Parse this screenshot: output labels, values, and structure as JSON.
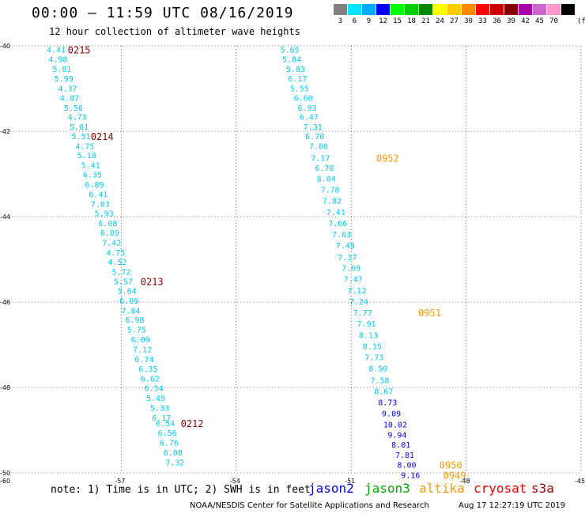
{
  "header": {
    "title": "00:00 – 11:59 UTC 08/16/2019",
    "subtitle": "12 hour collection of altimeter wave heights"
  },
  "legend": {
    "unit": "(ft)",
    "bins": [
      {
        "label": "3",
        "color": "#808080"
      },
      {
        "label": "6",
        "color": "#00e5ff"
      },
      {
        "label": "9",
        "color": "#00aaff"
      },
      {
        "label": "12",
        "color": "#0000ff"
      },
      {
        "label": "15",
        "color": "#00ff00"
      },
      {
        "label": "18",
        "color": "#00cc00"
      },
      {
        "label": "21",
        "color": "#008800"
      },
      {
        "label": "24",
        "color": "#ffff00"
      },
      {
        "label": "27",
        "color": "#ffcc00"
      },
      {
        "label": "30",
        "color": "#ff8800"
      },
      {
        "label": "33",
        "color": "#ff0000"
      },
      {
        "label": "36",
        "color": "#cc0000"
      },
      {
        "label": "39",
        "color": "#880000"
      },
      {
        "label": "42",
        "color": "#aa00aa"
      },
      {
        "label": "45",
        "color": "#cc66cc"
      },
      {
        "label": "70",
        "color": "#ff99cc"
      },
      {
        "label": "",
        "color": "#000000"
      }
    ]
  },
  "chart_data": {
    "type": "scatter",
    "xlim": [
      -60,
      -45
    ],
    "ylim": [
      -50,
      -40
    ],
    "x_ticks": [
      "-57",
      "-54",
      "-51",
      "-48",
      "-45"
    ],
    "y_ticks": [
      "-40",
      "-42",
      "-44",
      "-46",
      "-48",
      "-50"
    ],
    "corner_tick": "-60",
    "grid": true,
    "tracks": [
      {
        "color": "#00ccee",
        "values": [
          {
            "lon": -58.7,
            "lat": -40.08,
            "v": "4.41"
          },
          {
            "lon": -58.65,
            "lat": -40.31,
            "v": "4.98"
          },
          {
            "lon": -58.55,
            "lat": -40.54,
            "v": "5.81"
          },
          {
            "lon": -58.5,
            "lat": -40.76,
            "v": "5.99"
          },
          {
            "lon": -58.4,
            "lat": -40.99,
            "v": "4.37"
          },
          {
            "lon": -58.35,
            "lat": -41.21,
            "v": "4.87"
          },
          {
            "lon": -58.25,
            "lat": -41.44,
            "v": "5.56"
          },
          {
            "lon": -58.15,
            "lat": -41.66,
            "v": "4.73"
          },
          {
            "lon": -58.1,
            "lat": -41.89,
            "v": "5.01"
          },
          {
            "lon": -58.05,
            "lat": -42.11,
            "v": "5.51"
          },
          {
            "lon": -57.95,
            "lat": -42.34,
            "v": "4.75"
          },
          {
            "lon": -57.9,
            "lat": -42.56,
            "v": "5.18"
          },
          {
            "lon": -57.8,
            "lat": -42.79,
            "v": "5.41"
          },
          {
            "lon": -57.75,
            "lat": -43.01,
            "v": "6.35"
          },
          {
            "lon": -57.7,
            "lat": -43.24,
            "v": "6.89"
          },
          {
            "lon": -57.6,
            "lat": -43.47,
            "v": "6.41"
          },
          {
            "lon": -57.55,
            "lat": -43.69,
            "v": "7.03"
          },
          {
            "lon": -57.45,
            "lat": -43.92,
            "v": "5.93"
          },
          {
            "lon": -57.35,
            "lat": -44.15,
            "v": "6.08"
          },
          {
            "lon": -57.3,
            "lat": -44.37,
            "v": "6.89"
          },
          {
            "lon": -57.25,
            "lat": -44.6,
            "v": "7.42"
          },
          {
            "lon": -57.15,
            "lat": -44.83,
            "v": "4.75"
          },
          {
            "lon": -57.1,
            "lat": -45.06,
            "v": "4.52"
          },
          {
            "lon": -57.0,
            "lat": -45.29,
            "v": "5.72"
          },
          {
            "lon": -56.95,
            "lat": -45.51,
            "v": "5.57"
          },
          {
            "lon": -56.85,
            "lat": -45.73,
            "v": "5.64"
          },
          {
            "lon": -56.8,
            "lat": -45.96,
            "v": "6.09"
          },
          {
            "lon": -56.75,
            "lat": -46.19,
            "v": "7.84"
          },
          {
            "lon": -56.65,
            "lat": -46.41,
            "v": "6.98"
          },
          {
            "lon": -56.6,
            "lat": -46.64,
            "v": "5.75"
          },
          {
            "lon": -56.5,
            "lat": -46.87,
            "v": "6.09"
          },
          {
            "lon": -56.45,
            "lat": -47.1,
            "v": "7.12"
          },
          {
            "lon": -56.4,
            "lat": -47.33,
            "v": "6.74"
          },
          {
            "lon": -56.3,
            "lat": -47.56,
            "v": "6.35"
          },
          {
            "lon": -56.25,
            "lat": -47.79,
            "v": "6.62"
          },
          {
            "lon": -56.15,
            "lat": -48.01,
            "v": "6.54"
          },
          {
            "lon": -56.1,
            "lat": -48.24,
            "v": "5.49"
          },
          {
            "lon": -56.0,
            "lat": -48.47,
            "v": "5.33"
          },
          {
            "lon": -55.95,
            "lat": -48.7,
            "v": "6.17"
          },
          {
            "lon": -55.85,
            "lat": -48.83,
            "v": "6.54"
          },
          {
            "lon": -55.8,
            "lat": -49.06,
            "v": "6.56"
          },
          {
            "lon": -55.75,
            "lat": -49.29,
            "v": "6.76"
          },
          {
            "lon": -55.65,
            "lat": -49.52,
            "v": "6.08"
          },
          {
            "lon": -55.6,
            "lat": -49.75,
            "v": "7.32"
          }
        ],
        "passes": [
          {
            "lon": -58.1,
            "lat": -40.08,
            "t": "0215"
          },
          {
            "lon": -57.5,
            "lat": -42.11,
            "t": "0214"
          },
          {
            "lon": -56.2,
            "lat": -45.51,
            "t": "0213"
          },
          {
            "lon": -55.15,
            "lat": -48.83,
            "t": "0212"
          }
        ]
      },
      {
        "color": "#00ccee",
        "values": [
          {
            "lon": -52.6,
            "lat": -40.08,
            "v": "5.65"
          },
          {
            "lon": -52.55,
            "lat": -40.31,
            "v": "5.84"
          },
          {
            "lon": -52.45,
            "lat": -40.54,
            "v": "5.83"
          },
          {
            "lon": -52.4,
            "lat": -40.76,
            "v": "6.17"
          },
          {
            "lon": -52.35,
            "lat": -40.99,
            "v": "5.55"
          },
          {
            "lon": -52.25,
            "lat": -41.21,
            "v": "6.60"
          },
          {
            "lon": -52.15,
            "lat": -41.44,
            "v": "6.93"
          },
          {
            "lon": -52.1,
            "lat": -41.66,
            "v": "6.47"
          },
          {
            "lon": -52.0,
            "lat": -41.89,
            "v": "7.31"
          },
          {
            "lon": -51.95,
            "lat": -42.11,
            "v": "6.70"
          },
          {
            "lon": -51.85,
            "lat": -42.34,
            "v": "7.00"
          },
          {
            "lon": -51.8,
            "lat": -42.62,
            "v": "7.17"
          },
          {
            "lon": -51.7,
            "lat": -42.85,
            "v": "6.70"
          },
          {
            "lon": -51.65,
            "lat": -43.1,
            "v": "8.04"
          },
          {
            "lon": -51.55,
            "lat": -43.36,
            "v": "7.78"
          },
          {
            "lon": -51.5,
            "lat": -43.62,
            "v": "7.82"
          },
          {
            "lon": -51.4,
            "lat": -43.89,
            "v": "7.41"
          },
          {
            "lon": -51.35,
            "lat": -44.15,
            "v": "7.66"
          },
          {
            "lon": -51.25,
            "lat": -44.41,
            "v": "7.63"
          },
          {
            "lon": -51.15,
            "lat": -44.67,
            "v": "7.49"
          },
          {
            "lon": -51.1,
            "lat": -44.94,
            "v": "7.37"
          },
          {
            "lon": -51.0,
            "lat": -45.19,
            "v": "7.69"
          },
          {
            "lon": -50.95,
            "lat": -45.45,
            "v": "7.47"
          },
          {
            "lon": -50.85,
            "lat": -45.72,
            "v": "7.12"
          },
          {
            "lon": -50.8,
            "lat": -45.98,
            "v": "7.24"
          },
          {
            "lon": -50.7,
            "lat": -46.24,
            "v": "7.77"
          },
          {
            "lon": -50.6,
            "lat": -46.5,
            "v": "7.91"
          },
          {
            "lon": -50.55,
            "lat": -46.77,
            "v": "8.13"
          },
          {
            "lon": -50.45,
            "lat": -47.03,
            "v": "8.15"
          },
          {
            "lon": -50.4,
            "lat": -47.29,
            "v": "7.73"
          },
          {
            "lon": -50.3,
            "lat": -47.55,
            "v": "8.50"
          },
          {
            "lon": -50.25,
            "lat": -47.82,
            "v": "7.58"
          },
          {
            "lon": -50.15,
            "lat": -48.08,
            "v": "8.67"
          }
        ],
        "passes": [
          {
            "lon": -50.05,
            "lat": -42.62,
            "t": "0952"
          },
          {
            "lon": -48.95,
            "lat": -46.24,
            "t": "0951"
          }
        ]
      },
      {
        "color": "#0000ff",
        "values": [
          {
            "lon": -50.05,
            "lat": -48.34,
            "v": "8.73"
          },
          {
            "lon": -49.95,
            "lat": -48.6,
            "v": "9.09"
          },
          {
            "lon": -49.85,
            "lat": -48.86,
            "v": "10.02"
          },
          {
            "lon": -49.8,
            "lat": -49.1,
            "v": "9.94"
          },
          {
            "lon": -49.7,
            "lat": -49.33,
            "v": "8.01"
          },
          {
            "lon": -49.6,
            "lat": -49.57,
            "v": "7.81"
          },
          {
            "lon": -49.55,
            "lat": -49.81,
            "v": "8.00"
          },
          {
            "lon": -49.45,
            "lat": -50.05,
            "v": "9.16"
          }
        ],
        "passes": [
          {
            "lon": -48.4,
            "lat": -49.81,
            "t": "0950"
          },
          {
            "lon": -48.3,
            "lat": -50.05,
            "t": "0949"
          }
        ]
      }
    ]
  },
  "footer": {
    "note": "note:  1) Time is in UTC; 2) SWH is in feet",
    "satellites": [
      {
        "name": "jason2",
        "color": "#0000ee"
      },
      {
        "name": "jason3",
        "color": "#00aa00"
      },
      {
        "name": "altika",
        "color": "#ff9900"
      },
      {
        "name": "cryosat",
        "color": "#ee0000"
      },
      {
        "name": "s3a",
        "color": "#990000"
      }
    ],
    "credit": "NOAA/NESDIS Center for Satellite Applications and Research",
    "timestamp": "Aug 17 12:27:19 UTC 2019"
  }
}
